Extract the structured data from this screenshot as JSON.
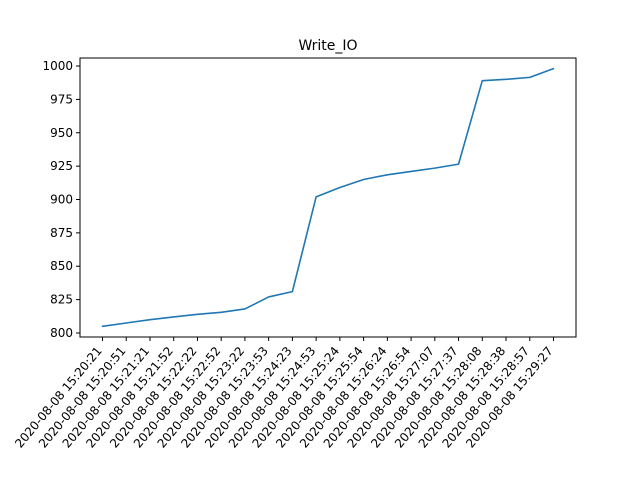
{
  "chart_data": {
    "type": "line",
    "title": "Write_IO",
    "xlabel": "",
    "ylabel": "",
    "categories": [
      "2020-08-08 15:20:21",
      "2020-08-08 15:20:51",
      "2020-08-08 15:21:21",
      "2020-08-08 15:21:52",
      "2020-08-08 15:22:22",
      "2020-08-08 15:22:52",
      "2020-08-08 15:23:22",
      "2020-08-08 15:23:53",
      "2020-08-08 15:24:23",
      "2020-08-08 15:24:53",
      "2020-08-08 15:25:24",
      "2020-08-08 15:25:54",
      "2020-08-08 15:26:24",
      "2020-08-08 15:26:54",
      "2020-08-08 15:27:07",
      "2020-08-08 15:27:37",
      "2020-08-08 15:28:08",
      "2020-08-08 15:28:38",
      "2020-08-08 15:28:57",
      "2020-08-08 15:29:27"
    ],
    "series": [
      {
        "values": [
          805,
          807.5,
          810,
          812,
          814,
          815.5,
          818,
          827,
          831,
          902,
          909,
          915,
          918.5,
          921,
          923.5,
          926.5,
          989,
          990,
          991.5,
          998
        ],
        "color": "#1f77b4"
      }
    ],
    "ylim": [
      797,
      1006
    ],
    "yticks": [
      800,
      825,
      850,
      875,
      900,
      925,
      950,
      975,
      1000
    ],
    "grid": false,
    "legend": "none"
  }
}
